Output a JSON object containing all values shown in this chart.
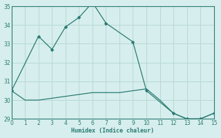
{
  "xlabel": "Humidex (Indice chaleur)",
  "background_color": "#d6eeed",
  "grid_color": "#b8d8d8",
  "line_color": "#2a7a72",
  "line1_x": [
    0,
    2,
    3,
    4,
    5,
    6,
    7,
    9,
    10,
    12,
    13,
    14,
    15
  ],
  "line1_y": [
    30.5,
    33.4,
    32.7,
    33.9,
    34.4,
    35.2,
    34.1,
    33.1,
    30.5,
    29.3,
    29.0,
    29.0,
    29.3
  ],
  "line2_x": [
    0,
    1,
    2,
    3,
    4,
    5,
    6,
    7,
    8,
    9,
    10,
    11,
    12,
    13,
    14,
    15
  ],
  "line2_y": [
    30.5,
    30.0,
    30.0,
    30.1,
    30.2,
    30.3,
    30.4,
    30.4,
    30.4,
    30.5,
    30.6,
    30.0,
    29.3,
    29.0,
    29.0,
    29.3
  ],
  "xlim": [
    0,
    15
  ],
  "ylim": [
    29,
    35
  ],
  "yticks": [
    29,
    30,
    31,
    32,
    33,
    34,
    35
  ],
  "xticks": [
    0,
    1,
    2,
    3,
    4,
    5,
    6,
    7,
    8,
    9,
    10,
    11,
    12,
    13,
    14,
    15
  ]
}
